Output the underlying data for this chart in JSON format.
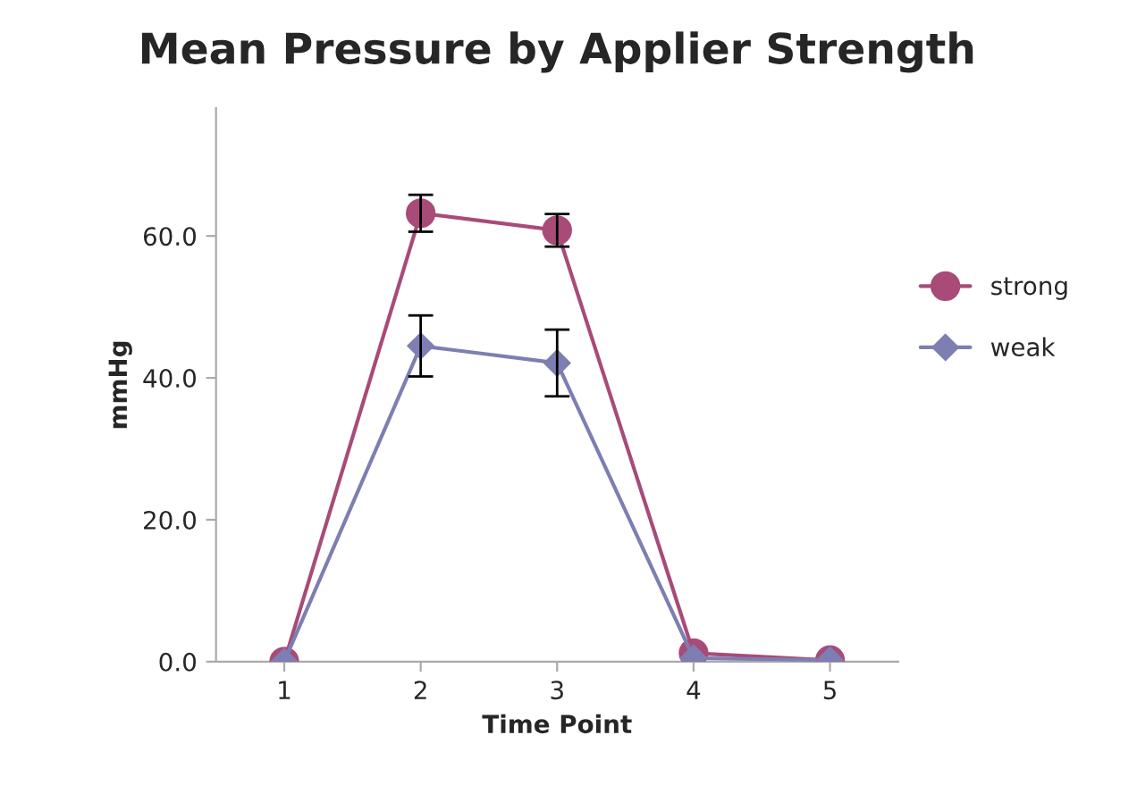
{
  "chart_data": {
    "type": "line",
    "title": "Mean Pressure by Applier Strength",
    "xlabel": "Time Point",
    "ylabel": "mmHg",
    "categories": [
      "1",
      "2",
      "3",
      "4",
      "5"
    ],
    "series": [
      {
        "name": "strong",
        "color": "#a84b78",
        "marker": "circle",
        "values": [
          0.0,
          63.2,
          60.8,
          1.2,
          0.2
        ],
        "errors": [
          null,
          2.6,
          2.3,
          null,
          null
        ]
      },
      {
        "name": "weak",
        "color": "#7d7fb2",
        "marker": "diamond",
        "values": [
          0.0,
          44.5,
          42.1,
          0.5,
          0.2
        ],
        "errors": [
          null,
          4.3,
          4.7,
          null,
          null
        ]
      }
    ],
    "ylim": [
      0,
      78
    ],
    "yticks": [
      {
        "value": 0,
        "label": "0.0"
      },
      {
        "value": 20,
        "label": "20.0"
      },
      {
        "value": 40,
        "label": "40.0"
      },
      {
        "value": 60,
        "label": "60.0"
      }
    ],
    "grid": false,
    "legend": "right",
    "line_style": "solid"
  }
}
